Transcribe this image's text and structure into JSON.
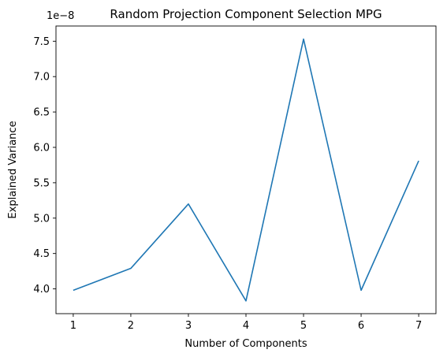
{
  "chart_data": {
    "type": "line",
    "title": "Random Projection Component Selection MPG",
    "xlabel": "Number of Components",
    "ylabel": "Explained Variance",
    "offset_text": "1e−8",
    "x": [
      1,
      2,
      3,
      4,
      5,
      6,
      7
    ],
    "values": [
      3.98e-08,
      4.29e-08,
      5.2e-08,
      3.83e-08,
      7.53e-08,
      3.98e-08,
      5.81e-08
    ],
    "xlim": [
      0.7,
      7.3
    ],
    "ylim": [
      3.65e-08,
      7.715e-08
    ],
    "x_ticks": [
      1,
      2,
      3,
      4,
      5,
      6,
      7
    ],
    "x_tick_labels": [
      "1",
      "2",
      "3",
      "4",
      "5",
      "6",
      "7"
    ],
    "y_ticks": [
      4e-08,
      4.5e-08,
      5e-08,
      5.5e-08,
      6e-08,
      6.5e-08,
      7e-08,
      7.5e-08
    ],
    "y_tick_labels": [
      "4.0",
      "4.5",
      "5.0",
      "5.5",
      "6.0",
      "6.5",
      "7.0",
      "7.5"
    ],
    "line_color": "#1f77b4",
    "grid": false,
    "legend": "none"
  }
}
